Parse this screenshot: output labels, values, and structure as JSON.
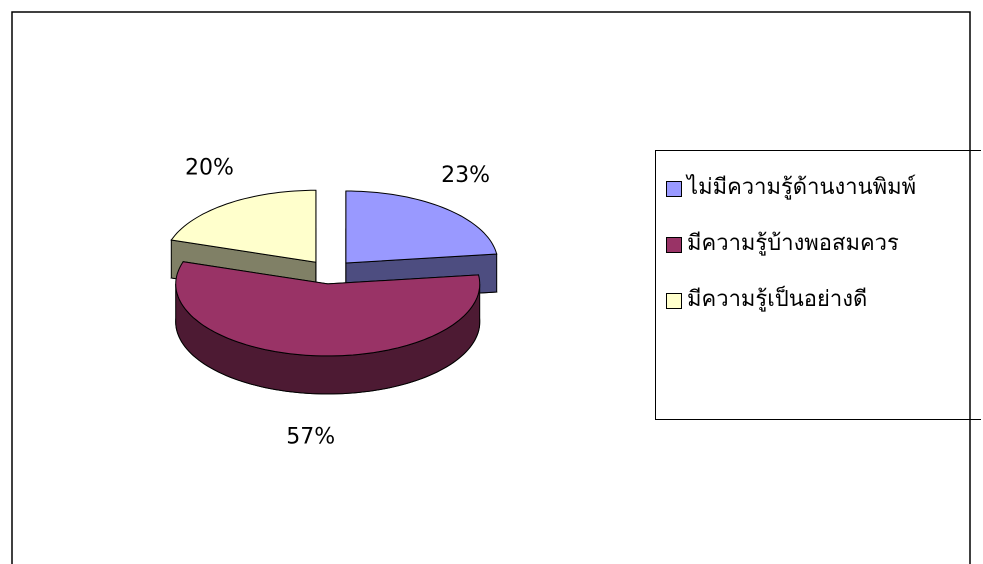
{
  "chart_data": {
    "type": "pie",
    "categories": [
      "ไม่มีความรู้ด้านงานพิมพ์",
      "มีความรู้บ้างพอสมควร",
      "มีความรู้เป็นอย่างดี"
    ],
    "values": [
      23,
      57,
      20
    ],
    "value_labels": [
      "23%",
      "57%",
      "20%"
    ],
    "colors": [
      "#9999ff",
      "#993366",
      "#ffffcc"
    ],
    "side_colors": [
      "#4d4d80",
      "#4d1a33",
      "#808066"
    ],
    "legend": "right"
  }
}
